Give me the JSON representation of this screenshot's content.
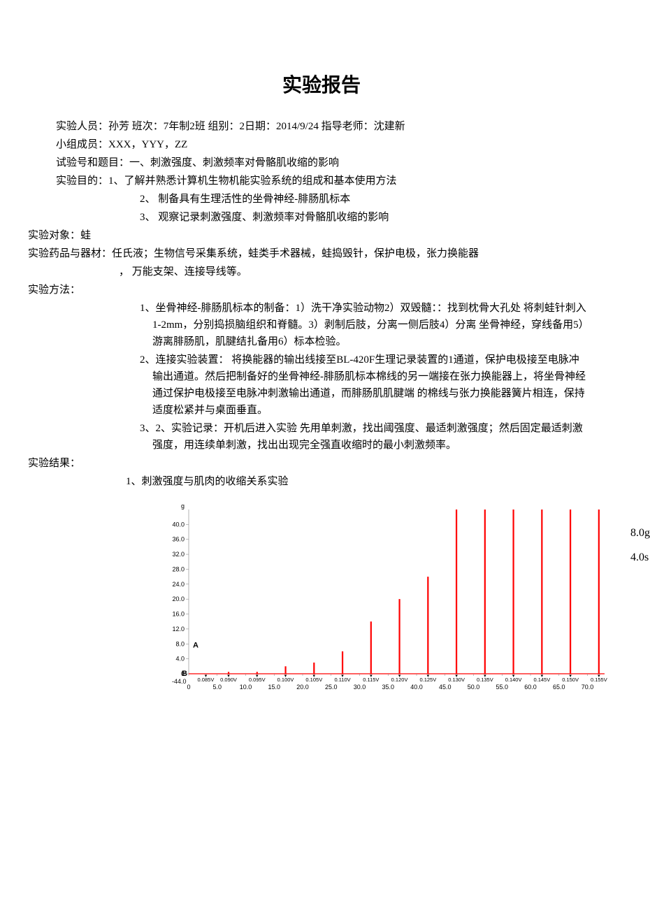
{
  "title": "实验报告",
  "header": {
    "line1": "实验人员：孙芳   班次：7年制2班 组别：2日期：2014/9/24 指导老师：沈建新",
    "line2": "小组成员：XXX，YYY，ZZ",
    "line3": "试验号和题目：一、刺激强度、刺激频率对骨骼肌收缩的影响",
    "purpose_label": "实验目的：1、了解并熟悉计算机生物机能实验系统的组成和基本使用方法",
    "purpose2": "2、      制备具有生理活性的坐骨神经-腓肠肌标本",
    "purpose3": "3、      观察记录刺激强度、刺激频率对骨骼肌收缩的影响",
    "subject": "实验对象：蛙",
    "materials1": "实验药品与器材：任氏液；生物信号采集系统，蛙类手术器械，蛙捣毁针，保护电极，张力换能器",
    "materials2": "， 万能支架、连接导线等。",
    "method_label": "实验方法：",
    "method1": "1、坐骨神经-腓肠肌标本的制备：1）洗干净实验动物2）双毁髓：：找到枕骨大孔处 将刺蛙针刺入1-2mm，分别捣损脑组织和脊髓。3）剥制后肢，分离一侧后肢4）分离 坐骨神经，穿线备用5）游离腓肠肌，肌腱结扎备用6）标本检验。",
    "method2": "2、连接实验装置：  将换能器的输出线接至BL-420F生理记录装置的1通道，保护电极接至电脉冲输出通道。然后把制备好的坐骨神经-腓肠肌标本棉线的另一端接在张力换能器上，将坐骨神经通过保护电极接至电脉冲刺激输出通道，而腓肠肌肌腱端 的棉线与张力换能器簧片相连，保持适度松紧并与桌面垂直。",
    "method3": "3、2、实验记录：开机后进入实验 先用单刺激，找出阈强度、最适刺激强度；然后固定最适刺激强度，用连续单刺激，找出出现完全强直收缩时的最小刺激频率。",
    "result_label": "实验结果：",
    "result1": "1、刺激强度与肌肉的收缩关系实验"
  },
  "chart": {
    "type": "line-spikes",
    "background_color": "#ffffff",
    "line_color": "#ff0000",
    "axis_color": "#808080",
    "text_color": "#000000",
    "font_size": 9,
    "y_label_top": "g",
    "y_ticks": [
      40.0,
      36.0,
      32.0,
      28.0,
      24.0,
      20.0,
      16.0,
      12.0,
      8.0,
      4.0,
      0
    ],
    "y_zero_label": "-44.0",
    "label_A": "A",
    "label_B": "B",
    "x_ticks": [
      "0",
      "5.0",
      "10.0",
      "15.0",
      "20.0",
      "25.0",
      "30.0",
      "35.0",
      "40.0",
      "45.0",
      "50.0",
      "55.0",
      "60.0",
      "65.0",
      "70.0"
    ],
    "voltage_labels": [
      "0.085V",
      "0.090V",
      "0.095V",
      "0.100V",
      "0.105V",
      "0.110V",
      "0.115V",
      "0.120V",
      "0.125V",
      "0.130V",
      "0.135V",
      "0.140V",
      "0.145V",
      "0.150V",
      "0.155V"
    ],
    "spikes": [
      {
        "x": 3,
        "h": 0
      },
      {
        "x": 7,
        "h": 0.5
      },
      {
        "x": 12,
        "h": 0.5
      },
      {
        "x": 17,
        "h": 2
      },
      {
        "x": 22,
        "h": 3
      },
      {
        "x": 27,
        "h": 6
      },
      {
        "x": 32,
        "h": 14
      },
      {
        "x": 37,
        "h": 20
      },
      {
        "x": 42,
        "h": 26
      },
      {
        "x": 47,
        "h": 44
      },
      {
        "x": 52,
        "h": 44
      },
      {
        "x": 57,
        "h": 44
      },
      {
        "x": 62,
        "h": 44
      },
      {
        "x": 67,
        "h": 44
      },
      {
        "x": 72,
        "h": 44
      }
    ],
    "scale_right": {
      "g": "8.0g",
      "s": "4.0s"
    }
  }
}
